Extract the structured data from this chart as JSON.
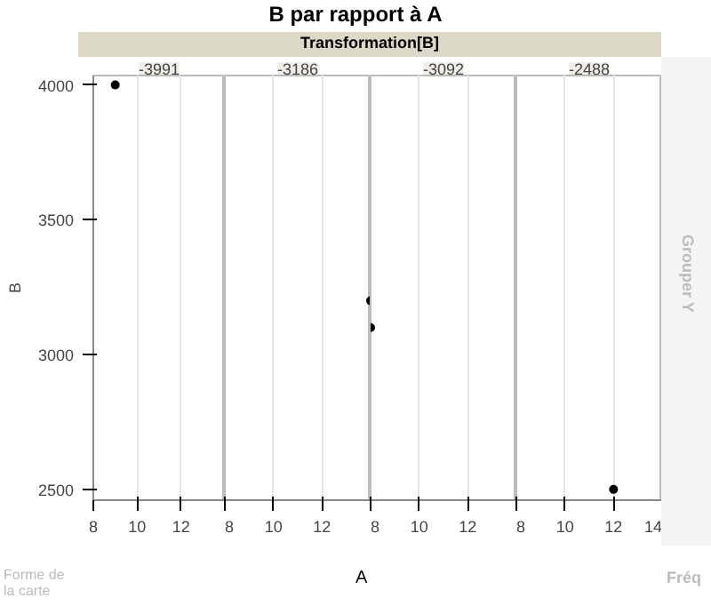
{
  "chart_data": [
    {
      "type": "scatter",
      "title": "-3991",
      "x": [
        9
      ],
      "values": [
        4000
      ],
      "color": "#000000",
      "marker": "circle",
      "xlim": [
        8,
        14
      ],
      "xticks": [
        8,
        10,
        12
      ],
      "ylim": [
        2460,
        4035
      ],
      "yticks": [
        2500,
        3000,
        3500,
        4000
      ],
      "ylabel": "B",
      "grid": "x",
      "annotations": [
        "B par rapport à A",
        "Transformation[B]",
        "A",
        "Grouper Y",
        "Forme de la carte",
        "Fréq"
      ]
    },
    {
      "type": "scatter",
      "title": "-3186",
      "x": [
        14
      ],
      "values": [
        3200
      ],
      "color": "#000000",
      "marker": "circle",
      "xlim": [
        8,
        14
      ],
      "xticks": [
        8,
        10,
        12
      ],
      "ylim": [
        2460,
        4035
      ],
      "yticks": [
        2500,
        3000,
        3500,
        4000
      ],
      "grid": "x",
      "tick_labels": "x"
    },
    {
      "type": "scatter",
      "title": "-3092",
      "x": [
        8
      ],
      "values": [
        3100
      ],
      "color": "#000000",
      "marker": "circle",
      "xlim": [
        8,
        14
      ],
      "xticks": [
        8,
        10,
        12
      ],
      "ylim": [
        2460,
        4035
      ],
      "yticks": [
        2500,
        3000,
        3500,
        4000
      ],
      "grid": "x",
      "tick_labels": "x"
    },
    {
      "type": "scatter",
      "title": "-2488",
      "x": [
        12
      ],
      "values": [
        2500
      ],
      "color": "#000000",
      "marker": "circle",
      "xlim": [
        8,
        14
      ],
      "xticks": [
        8,
        10,
        12,
        14
      ],
      "ylim": [
        2460,
        4035
      ],
      "yticks": [
        2500,
        3000,
        3500,
        4000
      ],
      "grid": "x",
      "tick_labels": "x"
    }
  ]
}
